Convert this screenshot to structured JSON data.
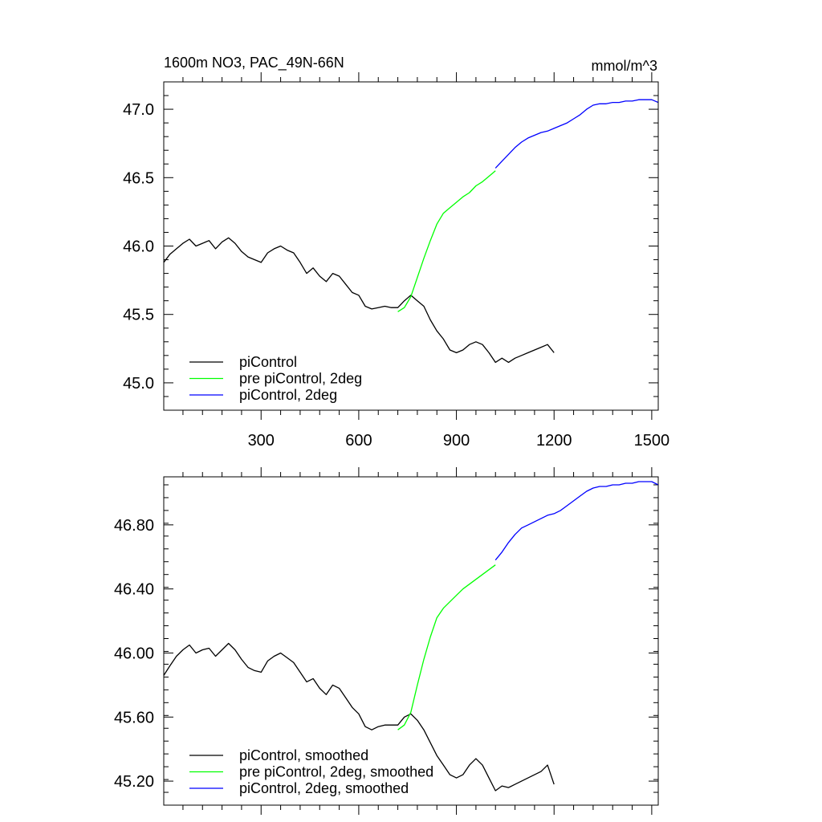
{
  "chart_data": [
    {
      "type": "line",
      "title": "1600m NO3, PAC_49N-66N",
      "units": "mmol/m^3",
      "xlim": [
        1,
        1520
      ],
      "ylim": [
        44.8,
        47.2
      ],
      "xticks": [
        300,
        600,
        900,
        1200,
        1500
      ],
      "yticks": [
        45.0,
        45.5,
        46.0,
        46.5,
        47.0
      ],
      "ytick_labels": [
        "45.0",
        "45.5",
        "46.0",
        "46.5",
        "47.0"
      ],
      "legend_position": "lower-left",
      "series": [
        {
          "name": "piControl",
          "color": "#000000",
          "x": [
            1,
            20,
            40,
            60,
            80,
            100,
            120,
            140,
            160,
            180,
            200,
            220,
            240,
            260,
            280,
            300,
            320,
            340,
            360,
            380,
            400,
            420,
            440,
            460,
            480,
            500,
            520,
            540,
            560,
            580,
            600,
            620,
            640,
            660,
            680,
            700,
            720,
            740,
            760,
            780,
            800,
            820,
            840,
            860,
            880,
            900,
            920,
            940,
            960,
            980,
            1000,
            1020,
            1040,
            1060,
            1080,
            1100,
            1120,
            1140,
            1160,
            1180,
            1200
          ],
          "values": [
            45.88,
            45.94,
            45.98,
            46.02,
            46.05,
            46.0,
            46.02,
            46.04,
            45.98,
            46.03,
            46.06,
            46.02,
            45.96,
            45.92,
            45.9,
            45.88,
            45.95,
            45.98,
            46.0,
            45.97,
            45.95,
            45.88,
            45.8,
            45.84,
            45.78,
            45.74,
            45.8,
            45.78,
            45.72,
            45.66,
            45.64,
            45.56,
            45.54,
            45.55,
            45.56,
            45.55,
            45.55,
            45.6,
            45.64,
            45.6,
            45.56,
            45.46,
            45.38,
            45.32,
            45.24,
            45.22,
            45.24,
            45.28,
            45.3,
            45.28,
            45.22,
            45.15,
            45.18,
            45.15,
            45.18,
            45.2,
            45.22,
            45.24,
            45.26,
            45.28,
            45.22
          ]
        },
        {
          "name": "pre piControl, 2deg",
          "color": "#00ff00",
          "x": [
            720,
            740,
            760,
            780,
            800,
            820,
            840,
            860,
            880,
            900,
            920,
            940,
            960,
            980,
            1000,
            1020
          ],
          "values": [
            45.52,
            45.55,
            45.63,
            45.77,
            45.91,
            46.04,
            46.16,
            46.24,
            46.28,
            46.32,
            46.36,
            46.39,
            46.44,
            46.47,
            46.51,
            46.55
          ]
        },
        {
          "name": "piControl, 2deg",
          "color": "#0000ff",
          "x": [
            1020,
            1040,
            1060,
            1080,
            1100,
            1120,
            1140,
            1160,
            1180,
            1200,
            1220,
            1240,
            1260,
            1280,
            1300,
            1320,
            1340,
            1360,
            1380,
            1400,
            1420,
            1440,
            1460,
            1480,
            1500,
            1520
          ],
          "values": [
            46.57,
            46.62,
            46.67,
            46.72,
            46.76,
            46.79,
            46.81,
            46.83,
            46.84,
            46.86,
            46.88,
            46.9,
            46.93,
            46.96,
            47.0,
            47.03,
            47.04,
            47.04,
            47.05,
            47.05,
            47.06,
            47.06,
            47.07,
            47.07,
            47.07,
            47.05
          ]
        }
      ]
    },
    {
      "type": "line",
      "title": "",
      "xlim": [
        1,
        1520
      ],
      "ylim": [
        45.05,
        47.1
      ],
      "xticks": [
        300,
        600,
        900,
        1200,
        1500
      ],
      "yticks": [
        45.2,
        45.6,
        46.0,
        46.4,
        46.8
      ],
      "ytick_labels": [
        "45.20",
        "45.60",
        "46.00",
        "46.40",
        "46.80"
      ],
      "legend_position": "lower-left",
      "series": [
        {
          "name": "piControl, smoothed",
          "color": "#000000",
          "x": [
            1,
            20,
            40,
            60,
            80,
            100,
            120,
            140,
            160,
            180,
            200,
            220,
            240,
            260,
            280,
            300,
            320,
            340,
            360,
            380,
            400,
            420,
            440,
            460,
            480,
            500,
            520,
            540,
            560,
            580,
            600,
            620,
            640,
            660,
            680,
            700,
            720,
            740,
            760,
            780,
            800,
            820,
            840,
            860,
            880,
            900,
            920,
            940,
            960,
            980,
            1000,
            1020,
            1040,
            1060,
            1080,
            1100,
            1120,
            1140,
            1160,
            1180,
            1200
          ],
          "values": [
            45.86,
            45.92,
            45.98,
            46.02,
            46.05,
            46.0,
            46.02,
            46.03,
            45.98,
            46.02,
            46.06,
            46.02,
            45.96,
            45.91,
            45.89,
            45.88,
            45.95,
            45.98,
            46.0,
            45.97,
            45.94,
            45.88,
            45.82,
            45.84,
            45.78,
            45.74,
            45.8,
            45.78,
            45.72,
            45.66,
            45.62,
            45.54,
            45.52,
            45.54,
            45.55,
            45.55,
            45.55,
            45.6,
            45.62,
            45.58,
            45.52,
            45.44,
            45.36,
            45.3,
            45.24,
            45.22,
            45.24,
            45.3,
            45.34,
            45.3,
            45.22,
            45.14,
            45.17,
            45.16,
            45.18,
            45.2,
            45.22,
            45.24,
            45.26,
            45.3,
            45.18
          ]
        },
        {
          "name": "pre piControl, 2deg, smoothed",
          "color": "#00ff00",
          "x": [
            720,
            740,
            760,
            780,
            800,
            820,
            840,
            860,
            880,
            900,
            920,
            940,
            960,
            980,
            1000,
            1020
          ],
          "values": [
            45.52,
            45.55,
            45.63,
            45.8,
            45.96,
            46.1,
            46.22,
            46.28,
            46.32,
            46.36,
            46.4,
            46.43,
            46.46,
            46.49,
            46.52,
            46.55
          ]
        },
        {
          "name": "piControl, 2deg, smoothed",
          "color": "#0000ff",
          "x": [
            1020,
            1040,
            1060,
            1080,
            1100,
            1120,
            1140,
            1160,
            1180,
            1200,
            1220,
            1240,
            1260,
            1280,
            1300,
            1320,
            1340,
            1360,
            1380,
            1400,
            1420,
            1440,
            1460,
            1480,
            1500,
            1520
          ],
          "values": [
            46.58,
            46.63,
            46.69,
            46.74,
            46.78,
            46.8,
            46.82,
            46.84,
            46.86,
            46.87,
            46.89,
            46.92,
            46.95,
            46.98,
            47.01,
            47.03,
            47.04,
            47.04,
            47.05,
            47.05,
            47.06,
            47.06,
            47.07,
            47.07,
            47.07,
            47.05
          ]
        }
      ]
    }
  ]
}
